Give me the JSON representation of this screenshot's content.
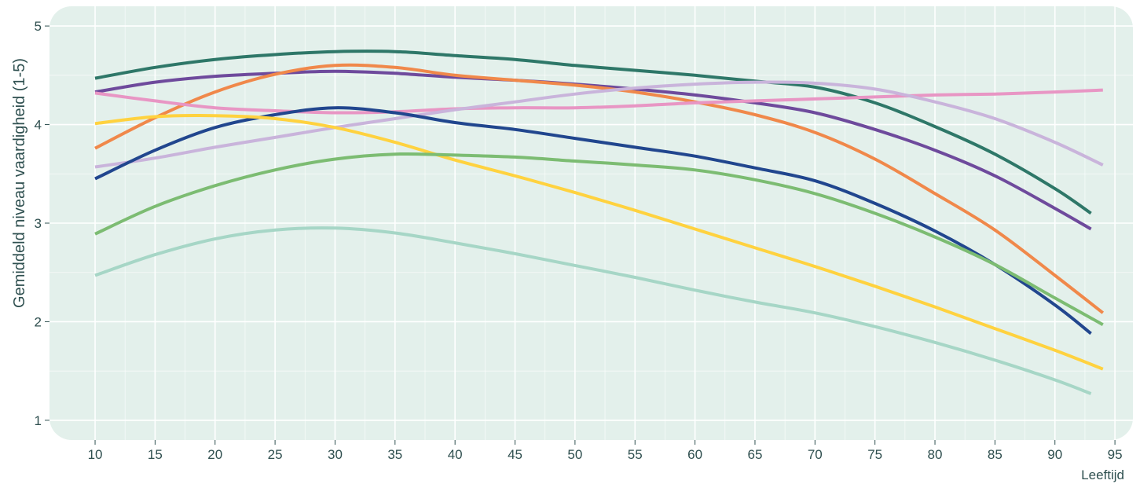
{
  "chart_data": {
    "type": "line",
    "title": "",
    "xlabel": "Leeftijd",
    "ylabel": "Gemiddeld niveau vaardigheid (1-5)",
    "xlim": [
      6.2,
      96.5
    ],
    "ylim": [
      0.8,
      5.2
    ],
    "x_ticks": [
      10,
      15,
      20,
      25,
      30,
      35,
      40,
      45,
      50,
      55,
      60,
      65,
      70,
      75,
      80,
      85,
      90,
      95
    ],
    "y_ticks": [
      1,
      2,
      3,
      4,
      5
    ],
    "grid": true,
    "legend": "none",
    "colors": {
      "panel_background": "#e3f0eb",
      "grid": "#ffffff",
      "text": "#2f5050"
    },
    "series": [
      {
        "color": "#2e7768",
        "x": [
          10,
          15,
          20,
          25,
          30,
          35,
          40,
          45,
          50,
          55,
          60,
          65,
          70,
          75,
          80,
          85,
          90,
          93
        ],
        "values": [
          4.47,
          4.58,
          4.66,
          4.71,
          4.74,
          4.74,
          4.7,
          4.66,
          4.6,
          4.55,
          4.5,
          4.44,
          4.38,
          4.22,
          3.98,
          3.7,
          3.35,
          3.1
        ]
      },
      {
        "color": "#6e4a9c",
        "x": [
          10,
          15,
          20,
          25,
          30,
          35,
          40,
          45,
          50,
          55,
          60,
          65,
          70,
          75,
          80,
          85,
          90,
          93
        ],
        "values": [
          4.33,
          4.43,
          4.49,
          4.52,
          4.54,
          4.52,
          4.48,
          4.45,
          4.41,
          4.36,
          4.3,
          4.22,
          4.12,
          3.95,
          3.74,
          3.48,
          3.15,
          2.94
        ]
      },
      {
        "color": "#f0884a",
        "x": [
          10,
          15,
          20,
          25,
          30,
          35,
          40,
          45,
          50,
          55,
          60,
          65,
          70,
          75,
          80,
          85,
          90,
          94
        ],
        "values": [
          3.76,
          4.07,
          4.33,
          4.51,
          4.6,
          4.58,
          4.5,
          4.45,
          4.4,
          4.33,
          4.23,
          4.1,
          3.92,
          3.65,
          3.3,
          2.93,
          2.47,
          2.09
        ]
      },
      {
        "color": "#e896c4",
        "x": [
          10,
          15,
          20,
          25,
          30,
          35,
          40,
          45,
          50,
          55,
          60,
          65,
          70,
          75,
          80,
          85,
          90,
          94
        ],
        "values": [
          4.32,
          4.24,
          4.17,
          4.14,
          4.12,
          4.13,
          4.16,
          4.17,
          4.17,
          4.19,
          4.22,
          4.24,
          4.26,
          4.28,
          4.3,
          4.31,
          4.33,
          4.35
        ]
      },
      {
        "color": "#c9b4db",
        "x": [
          10,
          15,
          20,
          25,
          30,
          35,
          40,
          45,
          50,
          55,
          60,
          65,
          70,
          75,
          80,
          85,
          90,
          94
        ],
        "values": [
          3.57,
          3.66,
          3.77,
          3.87,
          3.97,
          4.06,
          4.15,
          4.23,
          4.31,
          4.37,
          4.41,
          4.43,
          4.42,
          4.36,
          4.23,
          4.06,
          3.82,
          3.59
        ]
      },
      {
        "color": "#21468e",
        "x": [
          10,
          15,
          20,
          25,
          30,
          35,
          40,
          45,
          50,
          55,
          60,
          65,
          70,
          75,
          80,
          85,
          90,
          93
        ],
        "values": [
          3.45,
          3.74,
          3.97,
          4.1,
          4.17,
          4.12,
          4.02,
          3.95,
          3.86,
          3.77,
          3.68,
          3.56,
          3.43,
          3.2,
          2.92,
          2.58,
          2.17,
          1.88
        ]
      },
      {
        "color": "#ffd23f",
        "x": [
          10,
          15,
          20,
          25,
          30,
          35,
          40,
          45,
          50,
          55,
          60,
          65,
          70,
          75,
          80,
          85,
          90,
          94
        ],
        "values": [
          4.01,
          4.08,
          4.09,
          4.06,
          3.97,
          3.82,
          3.64,
          3.48,
          3.31,
          3.13,
          2.94,
          2.75,
          2.56,
          2.36,
          2.15,
          1.93,
          1.71,
          1.52
        ]
      },
      {
        "color": "#7cbc72",
        "x": [
          10,
          15,
          20,
          25,
          30,
          35,
          40,
          45,
          50,
          55,
          60,
          65,
          70,
          75,
          80,
          85,
          90,
          94
        ],
        "values": [
          2.89,
          3.17,
          3.38,
          3.54,
          3.65,
          3.7,
          3.69,
          3.67,
          3.63,
          3.59,
          3.54,
          3.44,
          3.3,
          3.1,
          2.86,
          2.58,
          2.24,
          1.97
        ]
      },
      {
        "color": "#a6d6c6",
        "x": [
          10,
          15,
          20,
          25,
          30,
          35,
          40,
          45,
          50,
          55,
          60,
          65,
          70,
          75,
          80,
          85,
          90,
          93
        ],
        "values": [
          2.47,
          2.68,
          2.84,
          2.93,
          2.95,
          2.9,
          2.8,
          2.69,
          2.57,
          2.45,
          2.32,
          2.2,
          2.09,
          1.95,
          1.79,
          1.61,
          1.41,
          1.27
        ]
      }
    ]
  }
}
